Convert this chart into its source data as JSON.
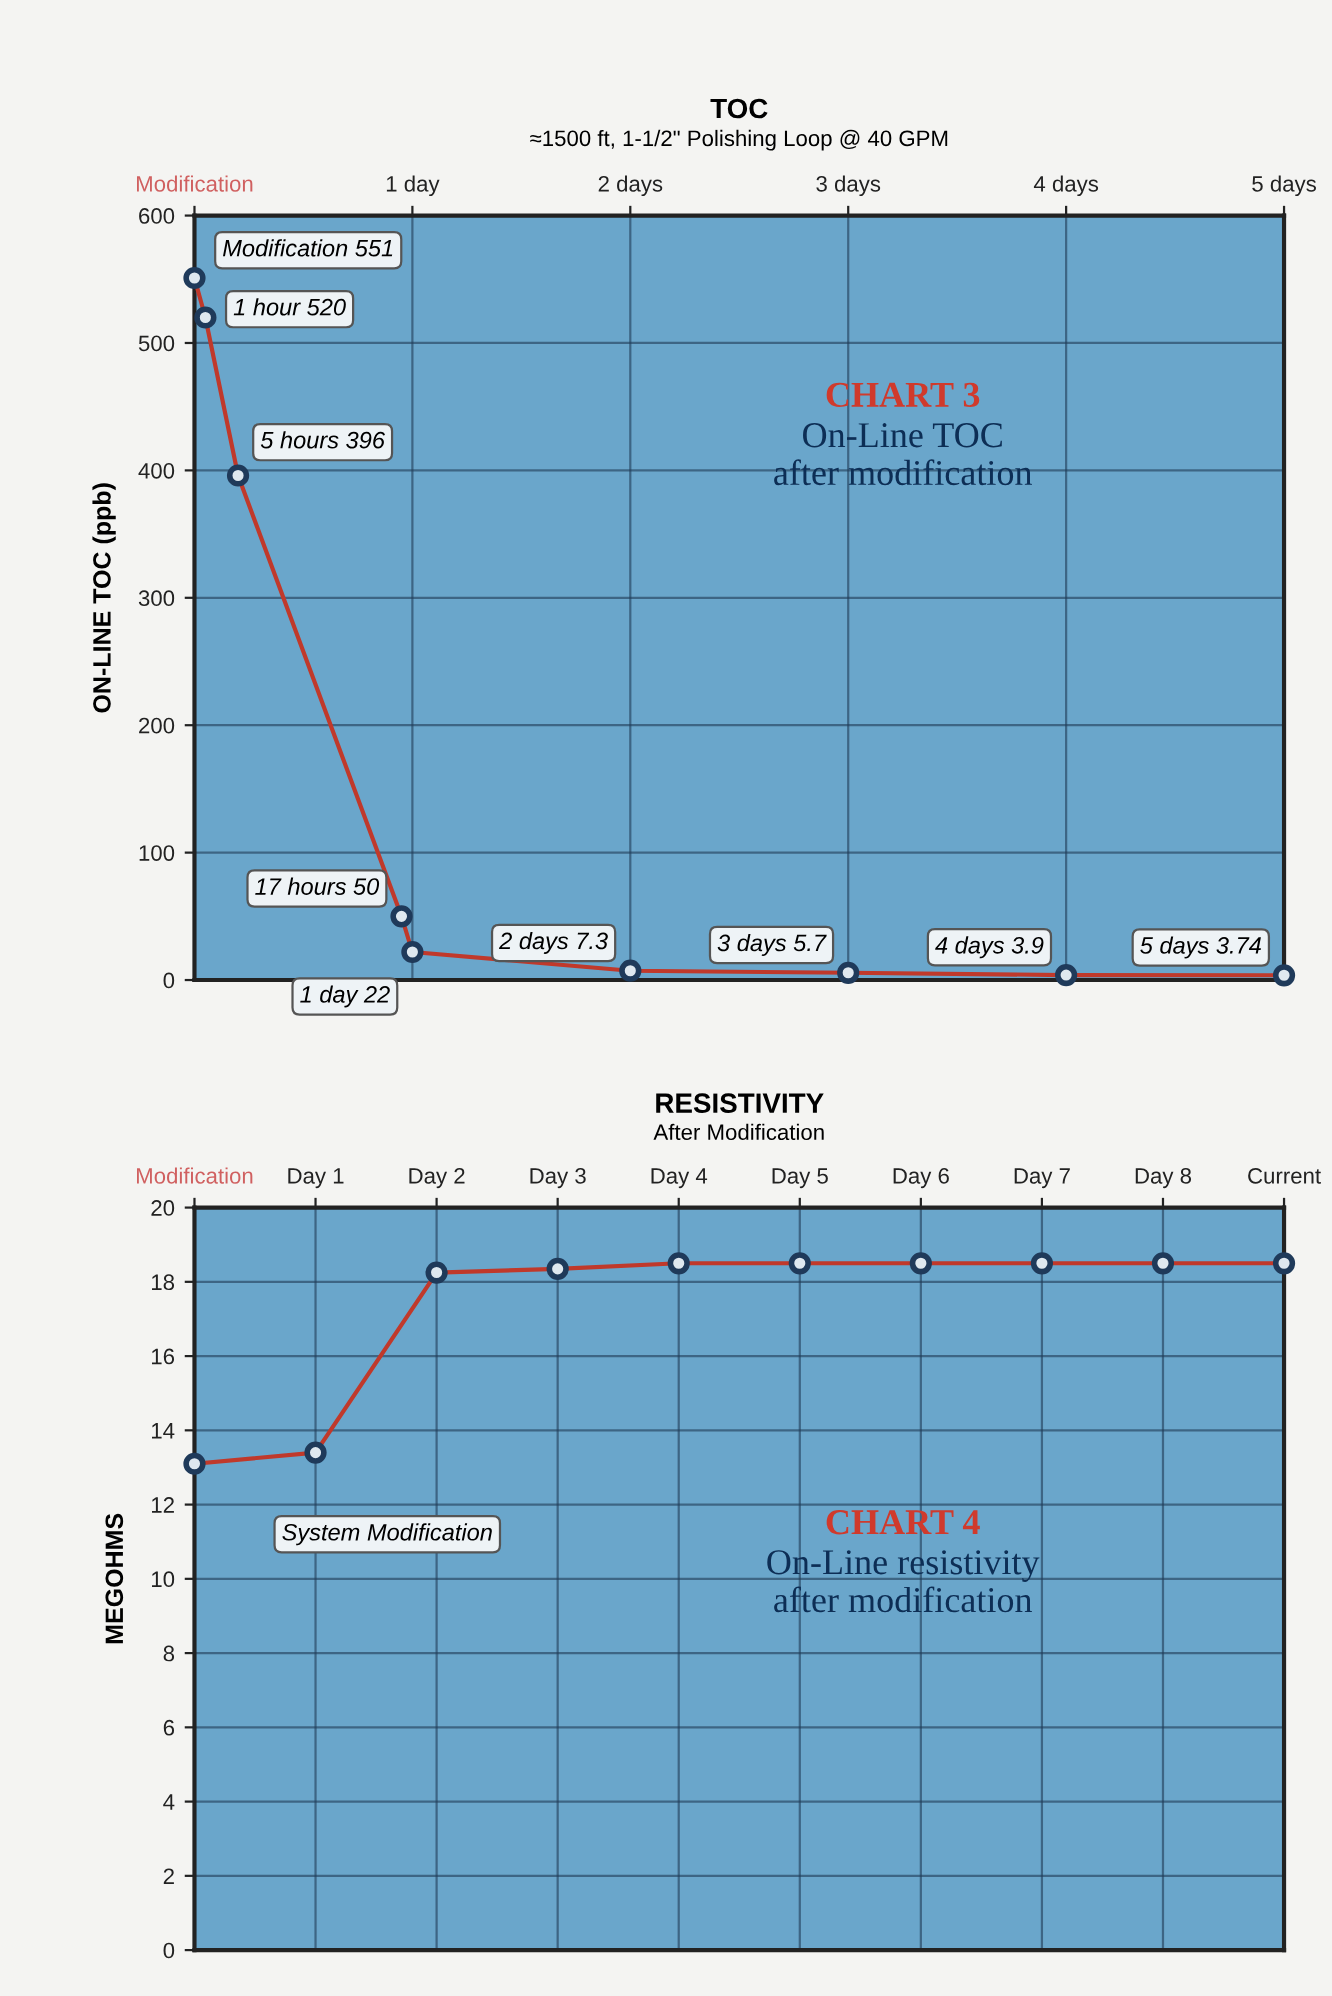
{
  "chart_data": [
    {
      "type": "line",
      "title": "TOC",
      "subtitle": "≈1500 ft, 1-1/2\" Polishing Loop @ 40 GPM",
      "ylabel": "ON-LINE TOC (ppb)",
      "x": [
        0,
        0.05,
        0.2,
        0.95,
        1.0,
        2,
        3,
        4,
        5
      ],
      "xlim": [
        0,
        5
      ],
      "xticks": [
        {
          "value": 0,
          "label": "Modification"
        },
        {
          "value": 1,
          "label": "1 day"
        },
        {
          "value": 2,
          "label": "2 days"
        },
        {
          "value": 3,
          "label": "3 days"
        },
        {
          "value": 4,
          "label": "4 days"
        },
        {
          "value": 5,
          "label": "5 days"
        }
      ],
      "ylim": [
        0,
        600
      ],
      "yticks": [
        0,
        100,
        200,
        300,
        400,
        500,
        600
      ],
      "grid": true,
      "marker": "circle",
      "series": [
        {
          "color": "#c0392b",
          "values": [
            551,
            520,
            396,
            50,
            22,
            7.3,
            5.7,
            3.9,
            3.74
          ],
          "value_labels": [
            "Modification 551",
            "1 hour 520",
            "5 hours 396",
            "17 hours 50",
            "1 day 22",
            "2 days 7.3",
            "3 days 5.7",
            "4 days 3.9",
            "5 days 3.74"
          ]
        }
      ],
      "annotations": [
        "CHART 3",
        "On-Line TOC\nafter modification"
      ]
    },
    {
      "type": "line",
      "title": "RESISTIVITY",
      "subtitle": "After Modification",
      "ylabel": "MEGOHMS",
      "categories": [
        "Modification",
        "Day 1",
        "Day 2",
        "Day 3",
        "Day 4",
        "Day 5",
        "Day 6",
        "Day 7",
        "Day 8",
        "Current"
      ],
      "ylim": [
        0,
        20
      ],
      "yticks": [
        0,
        2,
        4,
        6,
        8,
        10,
        12,
        14,
        16,
        18,
        20
      ],
      "grid": true,
      "marker": "circle",
      "series": [
        {
          "color": "#c0392b",
          "values": [
            13.1,
            13.4,
            18.25,
            18.35,
            18.5,
            18.5,
            18.5,
            18.5,
            18.5,
            18.5
          ]
        }
      ],
      "annotations": [
        "System Modification",
        "CHART 4",
        "On-Line resistivity\nafter modification"
      ]
    }
  ]
}
